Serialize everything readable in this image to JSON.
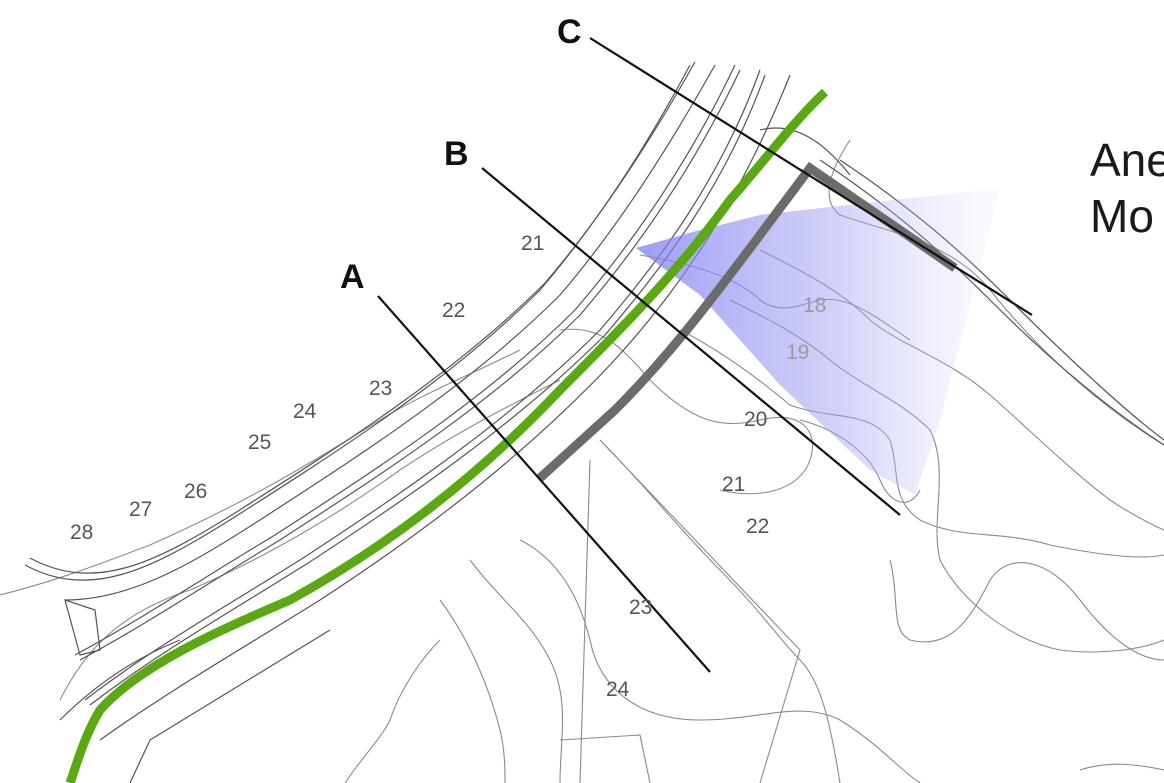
{
  "map": {
    "section_lines": [
      {
        "id": "A",
        "label": "A"
      },
      {
        "id": "B",
        "label": "B"
      },
      {
        "id": "C",
        "label": "C"
      }
    ],
    "contour_labels": [
      {
        "id": "c28",
        "text": "28"
      },
      {
        "id": "c27",
        "text": "27"
      },
      {
        "id": "c26",
        "text": "26"
      },
      {
        "id": "c25",
        "text": "25"
      },
      {
        "id": "c24a",
        "text": "24"
      },
      {
        "id": "c23a",
        "text": "23"
      },
      {
        "id": "c22a",
        "text": "22"
      },
      {
        "id": "c21a",
        "text": "21"
      },
      {
        "id": "c18",
        "text": "18"
      },
      {
        "id": "c19",
        "text": "19"
      },
      {
        "id": "c20",
        "text": "20"
      },
      {
        "id": "c21b",
        "text": "21"
      },
      {
        "id": "c22b",
        "text": "22"
      },
      {
        "id": "c23b",
        "text": "23"
      },
      {
        "id": "c24b",
        "text": "24"
      }
    ],
    "annotation": {
      "line1": "Ane",
      "line2": "Mo"
    },
    "colors": {
      "green_path": "#5aa812",
      "dark_path": "#6b6b6b",
      "shaded_area": "#8f8ff0",
      "contour": "#8a8a8a",
      "road_edge": "#444444",
      "section_line": "#111111",
      "label_gray": "#555555",
      "label_light": "#9a9aa0"
    }
  }
}
